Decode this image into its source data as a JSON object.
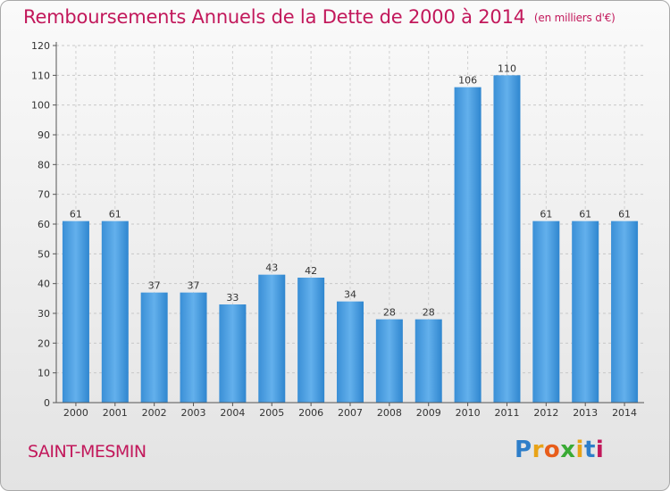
{
  "header": {
    "title": "Remboursements Annuels de la Dette de 2000 à 2014",
    "unit": "(en milliers d'€)"
  },
  "commune": "SAINT-MESMIN",
  "brand": {
    "letters": [
      "P",
      "r",
      "o",
      "x",
      "i",
      "t",
      "i"
    ],
    "colors": [
      "#2e7ec9",
      "#e8a317",
      "#e85d1a",
      "#3aaa35",
      "#e8a317",
      "#2e7ec9",
      "#c2185b"
    ]
  },
  "chart_data": {
    "type": "bar",
    "categories": [
      "2000",
      "2001",
      "2002",
      "2003",
      "2004",
      "2005",
      "2006",
      "2007",
      "2008",
      "2009",
      "2010",
      "2011",
      "2012",
      "2013",
      "2014"
    ],
    "values": [
      61,
      61,
      37,
      37,
      33,
      43,
      42,
      34,
      28,
      28,
      106,
      110,
      61,
      61,
      61
    ],
    "ylim": [
      0,
      120
    ],
    "yticks": [
      0,
      10,
      20,
      30,
      40,
      50,
      60,
      70,
      80,
      90,
      100,
      110,
      120
    ],
    "grid": true,
    "bar_color": "#3b96dc"
  }
}
